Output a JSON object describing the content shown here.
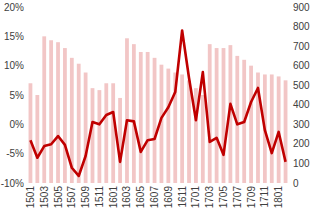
{
  "chart_data": {
    "type": "bar",
    "categories": [
      "1501",
      null,
      "1503",
      null,
      "1505",
      null,
      "1507",
      null,
      "1509",
      null,
      "1511",
      null,
      "1601",
      null,
      "1603",
      null,
      "1605",
      null,
      "1607",
      null,
      "1609",
      null,
      "1611",
      null,
      "1701",
      null,
      "1703",
      null,
      "1705",
      null,
      "1707",
      null,
      "1709",
      null,
      "1711",
      null,
      "1801",
      null
    ],
    "series": [
      {
        "type": "bar",
        "axis": "y2",
        "color": "#f2c6c6",
        "values": [
          510,
          450,
          750,
          730,
          720,
          690,
          640,
          610,
          565,
          485,
          475,
          510,
          510,
          435,
          740,
          710,
          670,
          670,
          640,
          605,
          585,
          565,
          555,
          525,
          485,
          450,
          710,
          690,
          690,
          705,
          650,
          630,
          600,
          565,
          555,
          555,
          545,
          525
        ]
      },
      {
        "type": "line",
        "color": "#c00000",
        "values": [
          -2.7,
          -5.7,
          -3.7,
          -3.4,
          -2.0,
          -3.5,
          -7.4,
          -8.8,
          -5.4,
          0.4,
          0.0,
          1.6,
          2.1,
          -6.4,
          0.7,
          0.5,
          -4.7,
          -2.7,
          -2.5,
          1.1,
          2.9,
          5.5,
          16.0,
          7.9,
          0.7,
          8.9,
          -3.0,
          -2.3,
          -5.2,
          3.5,
          0.0,
          0.4,
          3.8,
          6.2,
          -1.0,
          -4.9,
          -1.3,
          -6.4
        ]
      }
    ],
    "ylim": [
      -10,
      20
    ],
    "yticks": [
      {
        "value": -10,
        "label": "-10%"
      },
      {
        "value": -5,
        "label": "-5%"
      },
      {
        "value": 0,
        "label": "0%"
      },
      {
        "value": 5,
        "label": "5%"
      },
      {
        "value": 10,
        "label": "10%"
      },
      {
        "value": 15,
        "label": "15%"
      },
      {
        "value": 20,
        "label": "20%"
      }
    ],
    "y2lim": [
      0,
      900
    ],
    "y2ticks": [
      0,
      100,
      200,
      300,
      400,
      500,
      600,
      700,
      800,
      900
    ],
    "grid": false
  }
}
